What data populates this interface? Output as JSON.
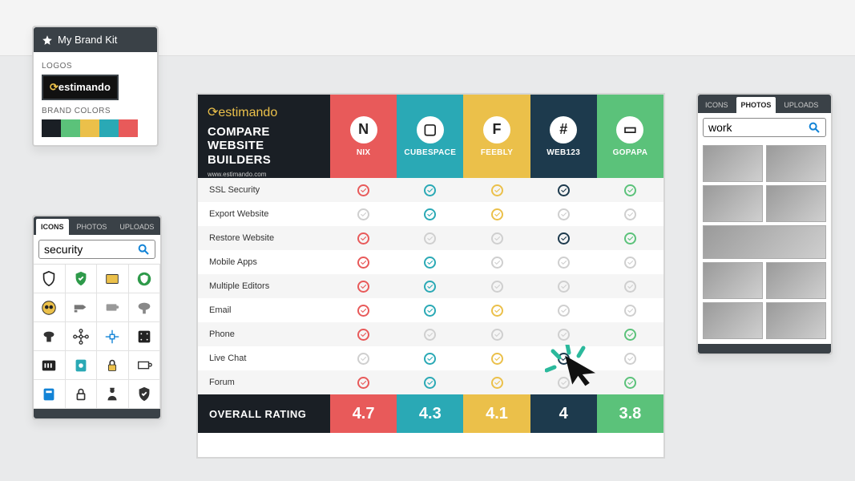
{
  "brandkit": {
    "title": "My Brand Kit",
    "logos_label": "LOGOS",
    "logo_text": "estimando",
    "colors_label": "BRAND COLORS",
    "swatches": [
      "#1a1f25",
      "#5bc27a",
      "#ebc04a",
      "#2aa9b5",
      "#e85a5a"
    ]
  },
  "icons_panel": {
    "tab_icons": "ICONS",
    "tab_photos": "PHOTOS",
    "tab_uploads": "UPLOADS",
    "search_value": "security"
  },
  "photos_panel": {
    "tab_icons": "ICONS",
    "tab_photos": "PHOTOS",
    "tab_uploads": "UPLOADS",
    "search_value": "work"
  },
  "chart": {
    "logo_text": "estimando",
    "title_line1": "COMPARE",
    "title_line2": "WEBSITE BUILDERS",
    "site": "www.estimando.com",
    "builders": [
      {
        "name": "NIX",
        "color": "#e85a5a",
        "glyph": "N"
      },
      {
        "name": "CUBESPACE",
        "color": "#2aa9b5",
        "glyph": "▢"
      },
      {
        "name": "FEEBLY",
        "color": "#ebc04a",
        "glyph": "F"
      },
      {
        "name": "WEB123",
        "color": "#1d3a4d",
        "glyph": "#"
      },
      {
        "name": "GOPAPA",
        "color": "#5bc27a",
        "glyph": "▭"
      }
    ],
    "features": [
      {
        "label": "SSL Security",
        "cells": [
          "on",
          "on",
          "on",
          "on",
          "on"
        ]
      },
      {
        "label": "Export Website",
        "cells": [
          "off",
          "on",
          "on",
          "off",
          "off"
        ]
      },
      {
        "label": "Restore Website",
        "cells": [
          "on",
          "off",
          "off",
          "on",
          "on"
        ]
      },
      {
        "label": "Mobile Apps",
        "cells": [
          "on",
          "on",
          "off",
          "off",
          "off"
        ]
      },
      {
        "label": "Multiple Editors",
        "cells": [
          "on",
          "on",
          "off",
          "off",
          "off"
        ]
      },
      {
        "label": "Email",
        "cells": [
          "on",
          "on",
          "on",
          "off",
          "off"
        ]
      },
      {
        "label": "Phone",
        "cells": [
          "on",
          "off",
          "off",
          "off",
          "on"
        ]
      },
      {
        "label": "Live Chat",
        "cells": [
          "off",
          "on",
          "on",
          "on",
          "off"
        ]
      },
      {
        "label": "Forum",
        "cells": [
          "on",
          "on",
          "on",
          "off",
          "on"
        ]
      }
    ],
    "overall_label": "OVERALL RATING",
    "ratings": [
      "4.7",
      "4.3",
      "4.1",
      "4",
      "3.8"
    ],
    "off_color": "#cfcfcf"
  }
}
